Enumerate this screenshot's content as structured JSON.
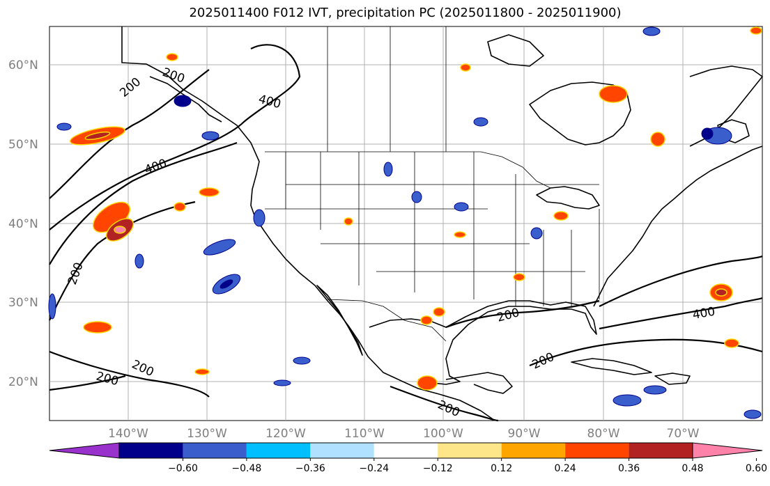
{
  "title": "2025011400 F012 IVT, precipitation PC (2025011800 - 2025011900)",
  "map": {
    "lon_labels": [
      "140°W",
      "130°W",
      "120°W",
      "110°W",
      "100°W",
      "90°W",
      "80°W",
      "70°W"
    ],
    "lat_labels": [
      "60°N",
      "50°N",
      "40°N",
      "30°N",
      "20°N"
    ],
    "contour_labels": [
      "200",
      "200",
      "400",
      "200",
      "400",
      "200",
      "200",
      "400",
      "200",
      "200",
      "200"
    ],
    "grid": true
  },
  "colorbar": {
    "ticks": [
      "−0.60",
      "−0.48",
      "−0.36",
      "−0.24",
      "−0.12",
      "0.12",
      "0.24",
      "0.36",
      "0.48",
      "0.60"
    ],
    "colors": [
      "#9932cc",
      "#00008b",
      "#3a5fcd",
      "#00bfff",
      "#b0e2ff",
      "#ffffff",
      "#fde68a",
      "#ffa500",
      "#ff4500",
      "#b22222",
      "#ff82ab"
    ]
  }
}
